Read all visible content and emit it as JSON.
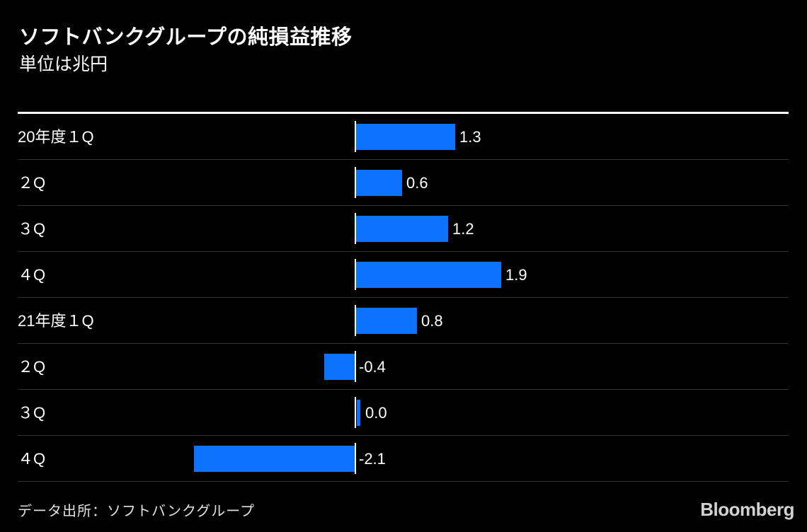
{
  "header": {
    "title": "ソフトバンクグループの純損益推移",
    "subtitle": "単位は兆円"
  },
  "chart_data": {
    "type": "bar",
    "orientation": "horizontal",
    "title": "ソフトバンクグループの純損益推移",
    "subtitle": "単位は兆円",
    "unit": "兆円",
    "categories": [
      "20年度１Q",
      "２Q",
      "３Q",
      "４Q",
      "21年度１Q",
      "２Q",
      "３Q",
      "４Q"
    ],
    "values": [
      1.3,
      0.6,
      1.2,
      1.9,
      0.8,
      -0.4,
      0.0,
      -2.1
    ],
    "value_labels": [
      "1.3",
      "0.6",
      "1.2",
      "1.9",
      "0.8",
      "-0.4",
      "0.0",
      "-2.1"
    ],
    "zero_baseline": true,
    "grid": false,
    "legend": false
  },
  "footer": {
    "source": "データ出所：ソフトバンクグループ",
    "brand": "Bloomberg"
  },
  "colors": {
    "background": "#000000",
    "bar": "#0d73ff",
    "text": "#ffffff",
    "separator": "#323232",
    "axis": "#ffffff",
    "source": "#e0e0e0",
    "logo": "#d2d2d2"
  }
}
